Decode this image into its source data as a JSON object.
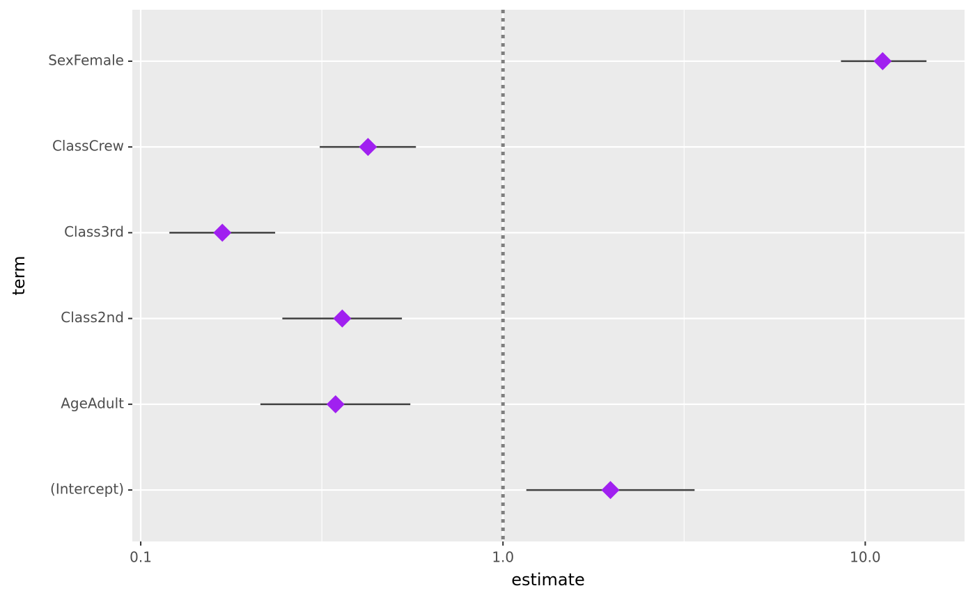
{
  "chart_data": {
    "type": "pointrange",
    "x_label": "estimate",
    "y_label": "term",
    "categories": [
      "(Intercept)",
      "AgeAdult",
      "Class2nd",
      "Class3rd",
      "ClassCrew",
      "SexFemale"
    ],
    "values": [
      1.98,
      0.345,
      0.36,
      0.168,
      0.424,
      11.17
    ],
    "lower": [
      1.16,
      0.214,
      0.246,
      0.12,
      0.312,
      8.57
    ],
    "upper": [
      3.38,
      0.555,
      0.526,
      0.235,
      0.575,
      14.76
    ],
    "color": "#a020f0",
    "interval_color": "#404040",
    "xscale": "log",
    "xlim": [
      0.0948,
      18.8
    ],
    "xticks": [
      0.1,
      {
        "value": 1,
        "label": "1.0"
      },
      {
        "value": 10,
        "label": "10.0"
      }
    ],
    "reference_line": 1,
    "grid": true
  }
}
